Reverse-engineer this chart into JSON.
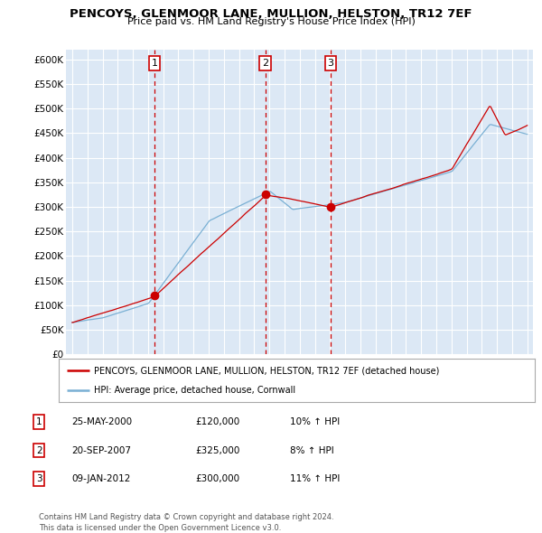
{
  "title": "PENCOYS, GLENMOOR LANE, MULLION, HELSTON, TR12 7EF",
  "subtitle": "Price paid vs. HM Land Registry's House Price Index (HPI)",
  "ylim": [
    0,
    620000
  ],
  "sale_dates": [
    2000.42,
    2007.72,
    2012.03
  ],
  "sale_prices": [
    120000,
    325000,
    300000
  ],
  "sale_labels": [
    "1",
    "2",
    "3"
  ],
  "legend_line1": "PENCOYS, GLENMOOR LANE, MULLION, HELSTON, TR12 7EF (detached house)",
  "legend_line2": "HPI: Average price, detached house, Cornwall",
  "table_rows": [
    [
      "1",
      "25-MAY-2000",
      "£120,000",
      "10% ↑ HPI"
    ],
    [
      "2",
      "20-SEP-2007",
      "£325,000",
      "8% ↑ HPI"
    ],
    [
      "3",
      "09-JAN-2012",
      "£300,000",
      "11% ↑ HPI"
    ]
  ],
  "footnote": "Contains HM Land Registry data © Crown copyright and database right 2024.\nThis data is licensed under the Open Government Licence v3.0.",
  "house_color": "#cc0000",
  "hpi_color": "#7ab0d4",
  "background_color": "#ffffff",
  "plot_bg_color": "#dce8f5",
  "grid_color": "#ffffff",
  "vline_color": "#cc0000"
}
